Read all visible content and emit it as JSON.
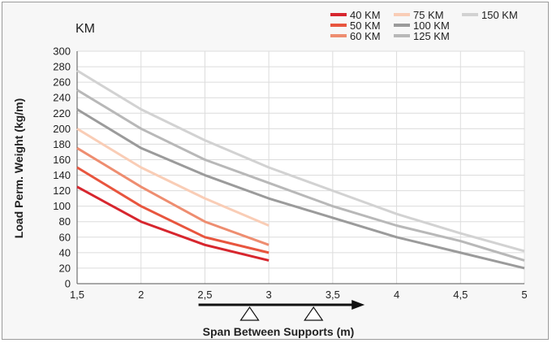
{
  "chart_data": {
    "type": "line",
    "title": "KM",
    "xlabel": "Span Between Supports (m)",
    "ylabel": "Load Perm. Weight (kg/m)",
    "xlim": [
      1.5,
      5
    ],
    "ylim": [
      0,
      300
    ],
    "x_ticks": [
      "1,5",
      "2",
      "2,5",
      "3",
      "3,5",
      "4",
      "4,5",
      "5"
    ],
    "y_ticks": [
      "0",
      "20",
      "40",
      "60",
      "80",
      "100",
      "120",
      "140",
      "160",
      "180",
      "200",
      "220",
      "240",
      "260",
      "280",
      "300"
    ],
    "grid": true,
    "legend_position": "top-right",
    "series": [
      {
        "name": "40 KM",
        "color": "#d7262e",
        "x": [
          1.5,
          2,
          2.5,
          3
        ],
        "y": [
          125,
          80,
          50,
          30
        ]
      },
      {
        "name": "50 KM",
        "color": "#e8553e",
        "x": [
          1.5,
          2,
          2.5,
          3
        ],
        "y": [
          150,
          100,
          60,
          40
        ]
      },
      {
        "name": "60 KM",
        "color": "#ee8d70",
        "x": [
          1.5,
          2,
          2.5,
          3
        ],
        "y": [
          175,
          125,
          80,
          50
        ]
      },
      {
        "name": "75   KM",
        "color": "#f9cdb6",
        "x": [
          1.5,
          2,
          2.5,
          3
        ],
        "y": [
          200,
          150,
          110,
          75
        ]
      },
      {
        "name": "100 KM",
        "color": "#9b9b9b",
        "x": [
          1.5,
          2,
          2.5,
          3,
          3.5,
          4,
          4.5,
          5
        ],
        "y": [
          225,
          175,
          140,
          110,
          85,
          60,
          40,
          20
        ]
      },
      {
        "name": "125 KM",
        "color": "#b8b8b8",
        "x": [
          1.5,
          2,
          2.5,
          3,
          3.5,
          4,
          4.5,
          5
        ],
        "y": [
          250,
          200,
          160,
          130,
          100,
          75,
          55,
          30
        ]
      },
      {
        "name": "150 KM",
        "color": "#d2d2d2",
        "x": [
          1.5,
          2,
          2.5,
          3,
          3.5,
          4,
          4.5,
          5
        ],
        "y": [
          275,
          225,
          185,
          150,
          120,
          90,
          65,
          42
        ]
      }
    ],
    "annotations": {
      "support_markers_x": [
        2.85,
        3.35
      ],
      "arrow_from_x": 2.45,
      "arrow_to_x": 3.75
    }
  }
}
